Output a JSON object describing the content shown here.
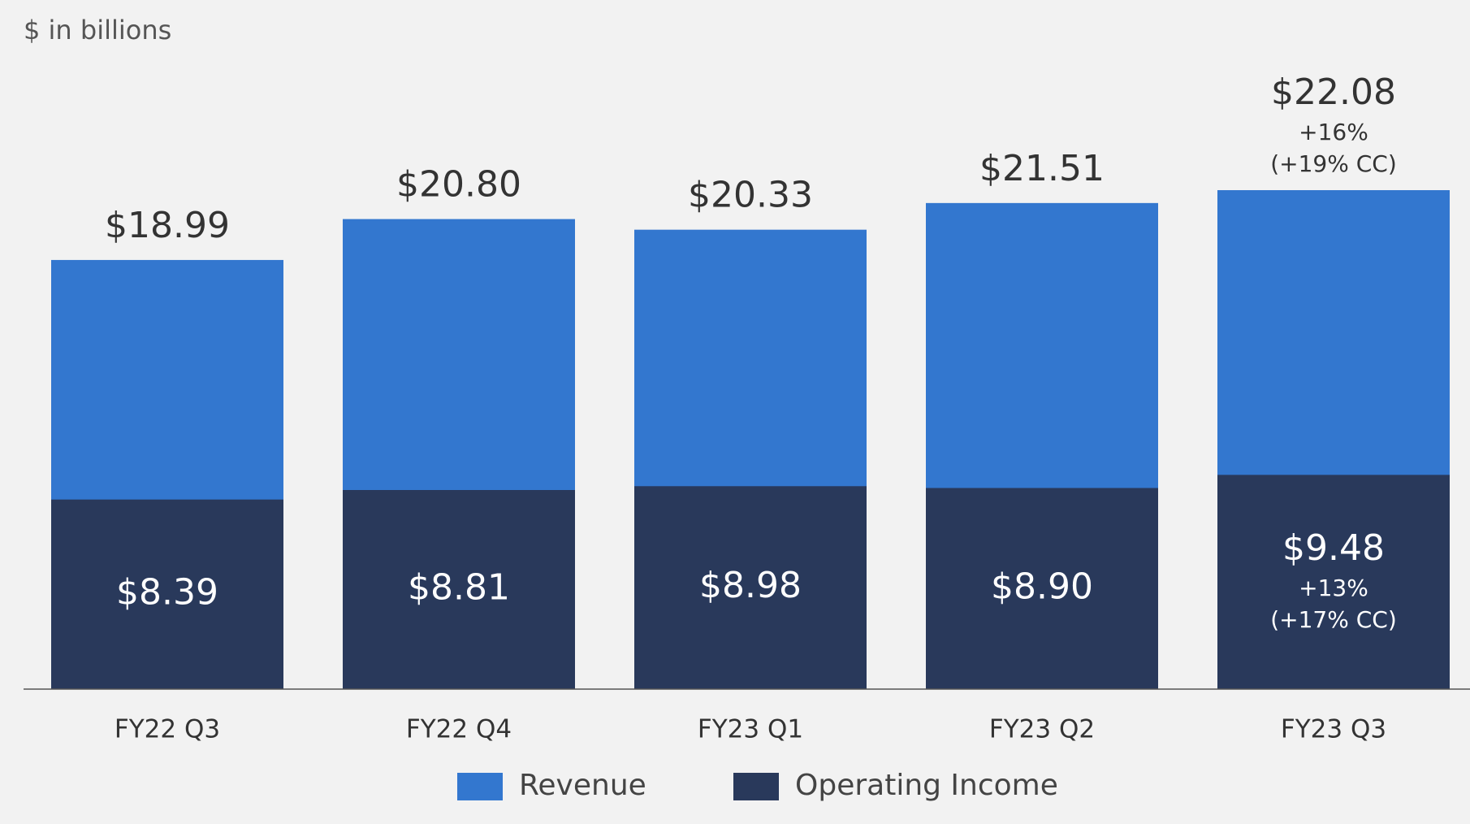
{
  "chart_data": {
    "type": "bar",
    "title": "$ in billions",
    "categories": [
      "FY22 Q3",
      "FY22 Q4",
      "FY23 Q1",
      "FY23 Q2",
      "FY23 Q3"
    ],
    "series": [
      {
        "name": "Revenue",
        "color": "#3377cf",
        "values": [
          18.99,
          20.8,
          20.33,
          21.51,
          22.08
        ],
        "value_labels": [
          "$18.99",
          "$20.80",
          "$20.33",
          "$21.51",
          "$22.08"
        ],
        "annotations": [
          null,
          null,
          null,
          null,
          [
            "+16%",
            "(+19% CC)"
          ]
        ]
      },
      {
        "name": "Operating Income",
        "color": "#29395b",
        "values": [
          8.39,
          8.81,
          8.98,
          8.9,
          9.48
        ],
        "value_labels": [
          "$8.39",
          "$8.81",
          "$8.98",
          "$8.90",
          "$9.48"
        ],
        "annotations": [
          null,
          null,
          null,
          null,
          [
            "+13%",
            "(+17% CC)"
          ]
        ]
      }
    ],
    "legend": "bottom"
  }
}
